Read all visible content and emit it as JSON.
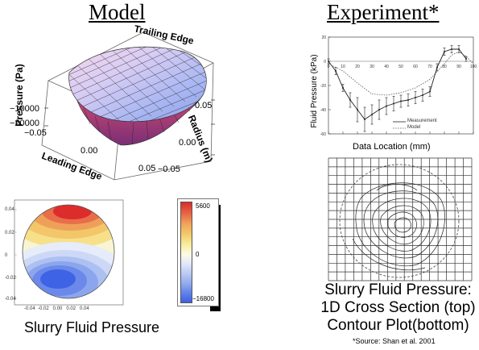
{
  "headers": {
    "model": "Model",
    "experiment": "Experiment*"
  },
  "surface_plot": {
    "z_axis_label": "Pressure (Pa)",
    "z_ticks": [
      "−10000",
      "−20000"
    ],
    "x_ticks_left": [
      "−0.05",
      "0.00",
      "0.05"
    ],
    "y_ticks_right": [
      "0.05",
      "0.00",
      "−0.05"
    ],
    "radius_label": "Radius (m)",
    "trailing_edge": "Trailing Edge",
    "leading_edge": "Leading Edge"
  },
  "contour_model": {
    "caption": "Slurry Fluid Pressure",
    "colorbar": {
      "max": "5600",
      "mid": "0",
      "min": "−16800"
    }
  },
  "line_plot": {
    "ylabel": "Fluid Pressure (kPa)",
    "xlabel": "Data Location (mm)",
    "legend": [
      "Measurement",
      "Model"
    ]
  },
  "right_caption": {
    "line1": "Slurry Fluid Pressure:",
    "line2": "1D Cross Section (top)",
    "line3": "Contour Plot(bottom)",
    "source": "*Source: Shan et al. 2001"
  },
  "chart_data": [
    {
      "type": "line",
      "xlabel": "Data Location (mm)",
      "ylabel": "Fluid Pressure (kPa)",
      "xlim": [
        0,
        100
      ],
      "ylim": [
        -60,
        20
      ],
      "x_ticks": [
        0,
        10,
        20,
        30,
        40,
        50,
        60,
        70,
        80,
        90,
        100
      ],
      "y_ticks": [
        20,
        0,
        -20,
        -40,
        -60
      ],
      "series": [
        {
          "name": "Measurement",
          "x": [
            0,
            5,
            10,
            15,
            20,
            25,
            30,
            35,
            40,
            45,
            50,
            55,
            60,
            65,
            70,
            75,
            80,
            85,
            90,
            95
          ],
          "y": [
            0,
            -8,
            -22,
            -32,
            -40,
            -48,
            -44,
            -40,
            -37,
            -35,
            -33,
            -32,
            -30,
            -28,
            -25,
            -5,
            8,
            10,
            10,
            2
          ],
          "err": [
            2,
            3,
            3,
            6,
            10,
            10,
            8,
            8,
            7,
            6,
            5,
            5,
            5,
            5,
            4,
            3,
            3,
            3,
            3,
            2
          ]
        },
        {
          "name": "Model",
          "x": [
            0,
            10,
            20,
            30,
            40,
            50,
            60,
            70,
            80,
            85,
            90,
            95,
            100
          ],
          "y": [
            -2,
            -8,
            -18,
            -27,
            -28,
            -26,
            -22,
            -15,
            -2,
            5,
            8,
            4,
            -2
          ]
        }
      ]
    }
  ]
}
